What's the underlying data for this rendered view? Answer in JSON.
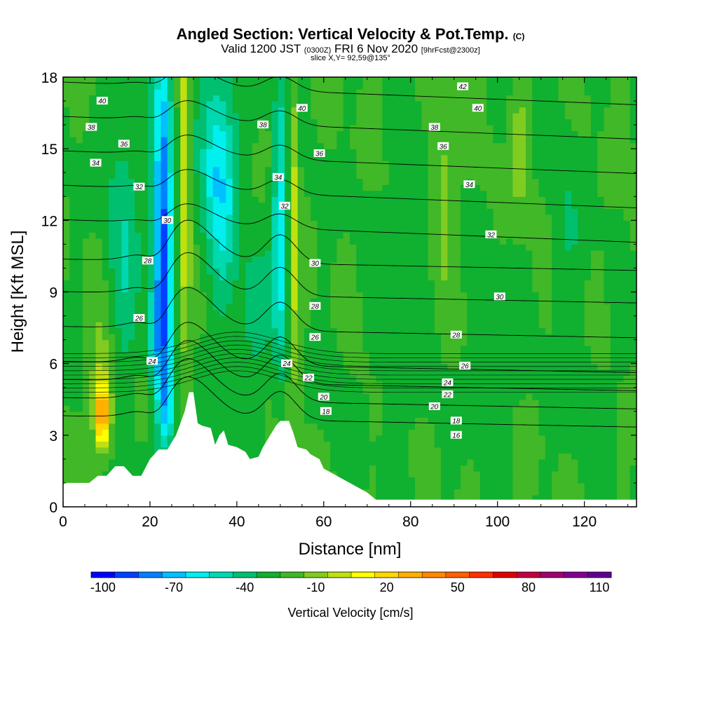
{
  "title": {
    "main": "Angled Section: Vertical Velocity & Pot.Temp.",
    "main_unit": "(C)",
    "valid_pre": "Valid 1200 JST",
    "valid_z": "(0300Z)",
    "valid_post": "FRI 6 Nov 2020",
    "fcst": "[9hrFcst@2300z]",
    "slice": "slice X,Y= 92,59@135°"
  },
  "chart_data": {
    "type": "heatmap",
    "xlabel": "Distance [nm]",
    "ylabel": "Height [Kft MSL]",
    "xlim": [
      0,
      132
    ],
    "ylim": [
      0,
      18
    ],
    "x_ticks": [
      "0",
      "20",
      "40",
      "60",
      "80",
      "100",
      "120"
    ],
    "y_ticks": [
      "0",
      "3",
      "6",
      "9",
      "12",
      "15",
      "18"
    ],
    "colorbar": {
      "label": "Vertical Velocity [cm/s]",
      "tick_labels": [
        "-100",
        "-70",
        "-40",
        "-10",
        "20",
        "50",
        "80",
        "110"
      ],
      "colors": [
        "#0000ff",
        "#0040ff",
        "#0080ff",
        "#00c0ff",
        "#00f0f0",
        "#00d8b0",
        "#00c070",
        "#10b030",
        "#40b828",
        "#80cc20",
        "#c0e010",
        "#ffff00",
        "#ffd800",
        "#ffb000",
        "#ff8800",
        "#ff6000",
        "#ff3000",
        "#e00000",
        "#c00040",
        "#a00070",
        "#800090",
        "#600090"
      ]
    },
    "terrain": [
      [
        0,
        1
      ],
      [
        6,
        1
      ],
      [
        8,
        1.3
      ],
      [
        10,
        1.3
      ],
      [
        12,
        1.7
      ],
      [
        14,
        1.7
      ],
      [
        16,
        1.3
      ],
      [
        18,
        1.3
      ],
      [
        20,
        2
      ],
      [
        22,
        2.4
      ],
      [
        24,
        2.4
      ],
      [
        26,
        3
      ],
      [
        27,
        3.5
      ],
      [
        28,
        4
      ],
      [
        29,
        4.8
      ],
      [
        30,
        4.8
      ],
      [
        31,
        3.5
      ],
      [
        32,
        3.4
      ],
      [
        34,
        3.3
      ],
      [
        35,
        2.6
      ],
      [
        36,
        3
      ],
      [
        37,
        3.2
      ],
      [
        38,
        2.6
      ],
      [
        40,
        2.5
      ],
      [
        42,
        2.3
      ],
      [
        43,
        2
      ],
      [
        45,
        2.1
      ],
      [
        46,
        2.5
      ],
      [
        47,
        2.8
      ],
      [
        48,
        3.1
      ],
      [
        49,
        3.4
      ],
      [
        50,
        3.6
      ],
      [
        52,
        3.6
      ],
      [
        53,
        3.1
      ],
      [
        54,
        2.5
      ],
      [
        56,
        2.4
      ],
      [
        57,
        2.2
      ],
      [
        58,
        2.1
      ],
      [
        59,
        2
      ],
      [
        60,
        1.6
      ],
      [
        62,
        1.4
      ],
      [
        64,
        1.2
      ],
      [
        66,
        1.0
      ],
      [
        68,
        0.8
      ],
      [
        70,
        0.6
      ],
      [
        72,
        0.3
      ],
      [
        132,
        0.3
      ]
    ],
    "velocity_features": [
      {
        "x": 9,
        "y": 3.8,
        "sx": 1.6,
        "sy": 1.3,
        "v": 85
      },
      {
        "x": 9,
        "y": 5.0,
        "sx": 3.0,
        "sy": 2.5,
        "v": 30
      },
      {
        "x": 23,
        "y": 12,
        "sx": 2.2,
        "sy": 7,
        "v": -95
      },
      {
        "x": 22,
        "y": 7,
        "sx": 2.5,
        "sy": 2.5,
        "v": -40
      },
      {
        "x": 14,
        "y": 11,
        "sx": 4,
        "sy": 7,
        "v": -25
      },
      {
        "x": 28,
        "y": 14,
        "sx": 1.2,
        "sy": 9,
        "v": 45
      },
      {
        "x": 36,
        "y": 14,
        "sx": 4,
        "sy": 5,
        "v": -60
      },
      {
        "x": 50,
        "y": 12,
        "sx": 1.8,
        "sy": 6,
        "v": -55
      },
      {
        "x": 53,
        "y": 12,
        "sx": 1.2,
        "sy": 7,
        "v": 40
      },
      {
        "x": 44,
        "y": 8,
        "sx": 3,
        "sy": 3,
        "v": -30
      },
      {
        "x": 24,
        "y": 4,
        "sx": 2,
        "sy": 1.5,
        "v": -50
      },
      {
        "x": 18,
        "y": 4,
        "sx": 2,
        "sy": 1.2,
        "v": 20
      },
      {
        "x": 88,
        "y": 14,
        "sx": 3,
        "sy": 4,
        "v": 22
      },
      {
        "x": 105,
        "y": 15,
        "sx": 2,
        "sy": 3,
        "v": 22
      },
      {
        "x": 116,
        "y": 11,
        "sx": 4,
        "sy": 6,
        "v": -12
      },
      {
        "x": 100,
        "y": 6,
        "sx": 5,
        "sy": 4,
        "v": -10
      },
      {
        "x": 78,
        "y": 9,
        "sx": 6,
        "sy": 8,
        "v": -8
      },
      {
        "x": 122,
        "y": 4,
        "sx": 6,
        "sy": 3,
        "v": -8
      },
      {
        "x": 64,
        "y": 4,
        "sx": 4,
        "sy": 3,
        "v": -6
      }
    ],
    "theta_contours": [
      16,
      18,
      20,
      22,
      24,
      26,
      28,
      30,
      32,
      34,
      36,
      38,
      40,
      42
    ],
    "contour_labels": [
      {
        "text": "40",
        "x": 9,
        "y": 17.0
      },
      {
        "text": "38",
        "x": 6.5,
        "y": 15.9
      },
      {
        "text": "36",
        "x": 14,
        "y": 15.2
      },
      {
        "text": "34",
        "x": 7.5,
        "y": 14.4
      },
      {
        "text": "32",
        "x": 17.5,
        "y": 13.4
      },
      {
        "text": "30",
        "x": 24,
        "y": 12.0
      },
      {
        "text": "28",
        "x": 19.5,
        "y": 10.3
      },
      {
        "text": "26",
        "x": 17.5,
        "y": 7.9
      },
      {
        "text": "24",
        "x": 20.5,
        "y": 6.1
      },
      {
        "text": "38",
        "x": 46,
        "y": 16.0
      },
      {
        "text": "40",
        "x": 55,
        "y": 16.7
      },
      {
        "text": "36",
        "x": 59,
        "y": 14.8
      },
      {
        "text": "34",
        "x": 49.5,
        "y": 13.8
      },
      {
        "text": "32",
        "x": 51,
        "y": 12.6
      },
      {
        "text": "30",
        "x": 58,
        "y": 10.2
      },
      {
        "text": "28",
        "x": 58,
        "y": 8.4
      },
      {
        "text": "26",
        "x": 58,
        "y": 7.1
      },
      {
        "text": "24",
        "x": 51.5,
        "y": 6.0
      },
      {
        "text": "22",
        "x": 56.5,
        "y": 5.4
      },
      {
        "text": "20",
        "x": 60,
        "y": 4.6
      },
      {
        "text": "18",
        "x": 60.5,
        "y": 4.0
      },
      {
        "text": "42",
        "x": 92,
        "y": 17.6
      },
      {
        "text": "40",
        "x": 95.5,
        "y": 16.7
      },
      {
        "text": "38",
        "x": 85.5,
        "y": 15.9
      },
      {
        "text": "36",
        "x": 87.5,
        "y": 15.1
      },
      {
        "text": "34",
        "x": 93.5,
        "y": 13.5
      },
      {
        "text": "32",
        "x": 98.5,
        "y": 11.4
      },
      {
        "text": "30",
        "x": 100.5,
        "y": 8.8
      },
      {
        "text": "28",
        "x": 90.5,
        "y": 7.2
      },
      {
        "text": "26",
        "x": 92.5,
        "y": 5.9
      },
      {
        "text": "24",
        "x": 88.5,
        "y": 5.2
      },
      {
        "text": "22",
        "x": 88.5,
        "y": 4.7
      },
      {
        "text": "20",
        "x": 85.5,
        "y": 4.2
      },
      {
        "text": "18",
        "x": 90.5,
        "y": 3.6
      },
      {
        "text": "16",
        "x": 90.5,
        "y": 3.0
      }
    ]
  }
}
